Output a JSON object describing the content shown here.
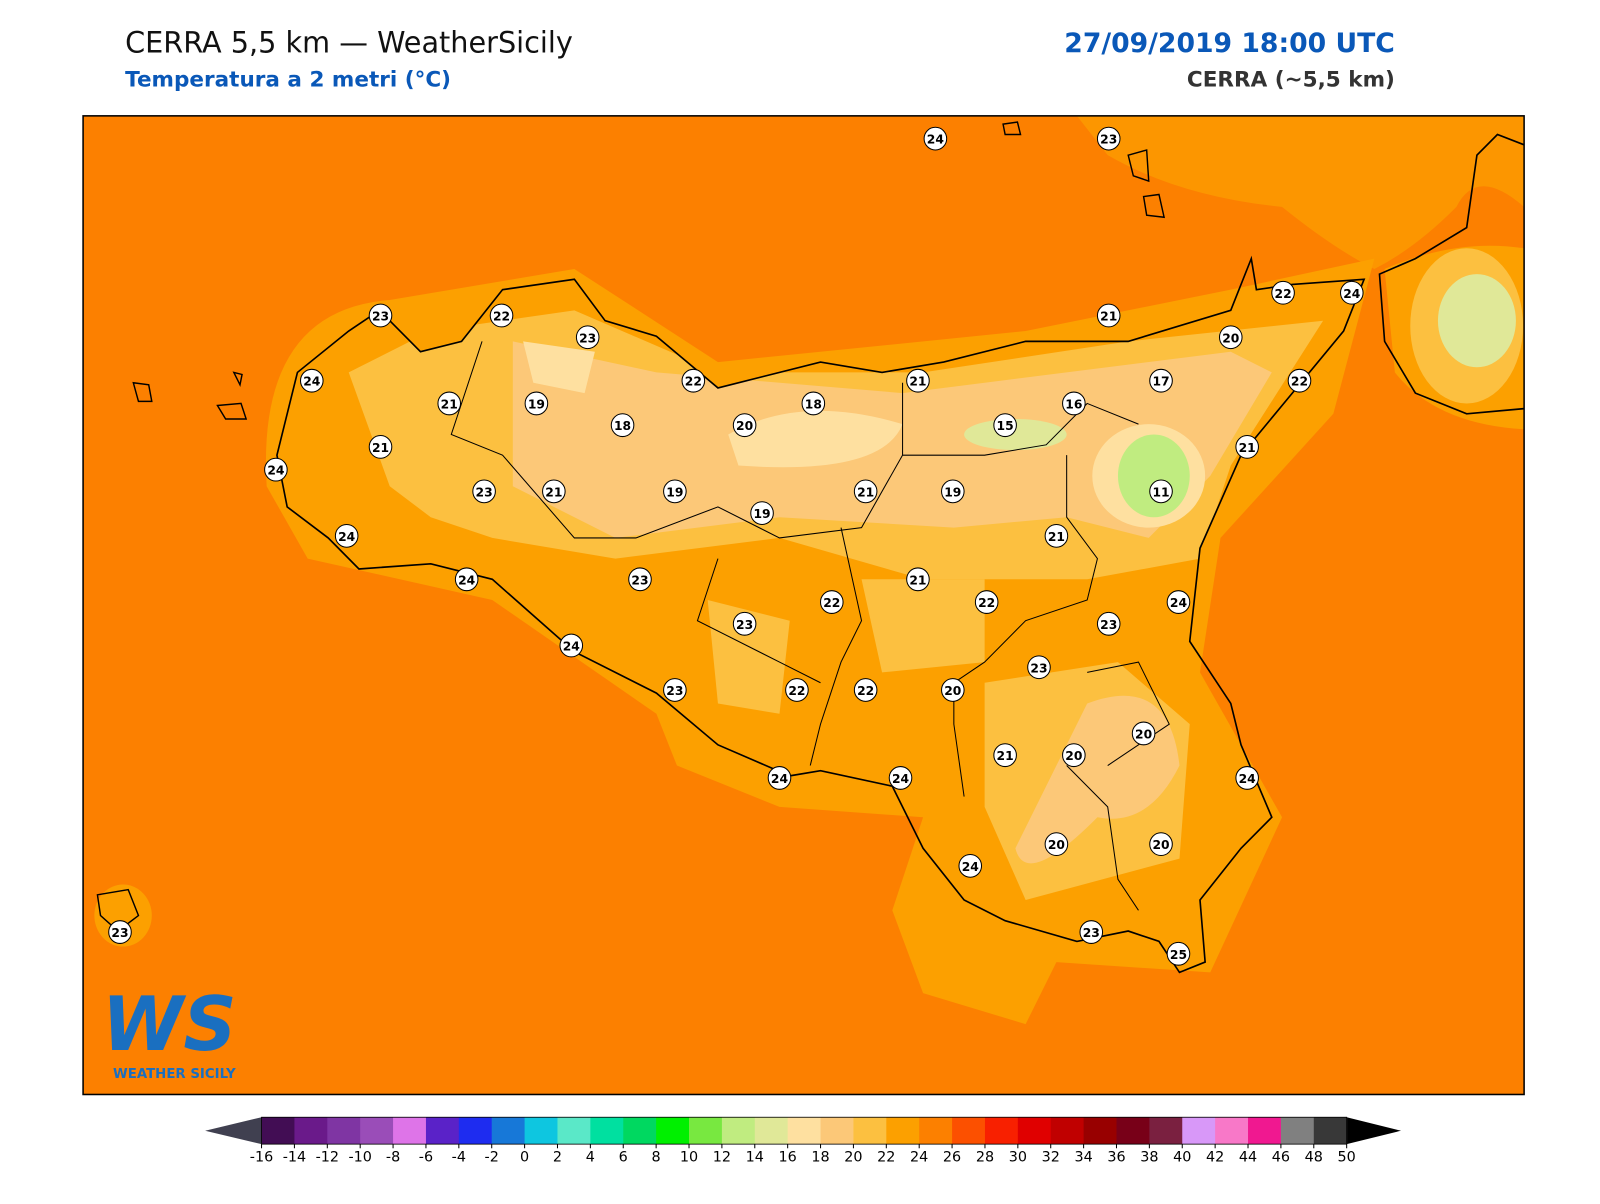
{
  "header": {
    "title": "CERRA 5,5 km — WeatherSicily",
    "subtitle": "Temperatura a 2 metri (°C)",
    "date": "27/09/2019 18:00 UTC",
    "model": "CERRA (~5,5 km)"
  },
  "stations": [
    24,
    23,
    23,
    22,
    23,
    24,
    22,
    21,
    19,
    18,
    18,
    20,
    21,
    21,
    22,
    24,
    20,
    17,
    22,
    16,
    15,
    21,
    21,
    24,
    23,
    21,
    19,
    19,
    21,
    19,
    11,
    24,
    21,
    24,
    23,
    21,
    22,
    22,
    24,
    23,
    23,
    24,
    23,
    23,
    22,
    22,
    20,
    20,
    21,
    20,
    24,
    24,
    24,
    20,
    20,
    24,
    23,
    25,
    23
  ],
  "colorbar": {
    "ticks": [
      -16,
      -14,
      -12,
      -10,
      -8,
      -6,
      -4,
      -2,
      0,
      2,
      4,
      6,
      8,
      10,
      12,
      14,
      16,
      18,
      20,
      22,
      24,
      26,
      28,
      30,
      32,
      34,
      36,
      38,
      40,
      42,
      44,
      46,
      48,
      50
    ],
    "colors": [
      "#420d54",
      "#6a1a8a",
      "#7f35a3",
      "#9a4db8",
      "#de74e8",
      "#5a22c8",
      "#1e2cf0",
      "#1778d8",
      "#0ec6e0",
      "#5ae8c8",
      "#00e0a0",
      "#00d860",
      "#00f000",
      "#78e840",
      "#c0ec80",
      "#e0e898",
      "#fee0a0",
      "#fcc878",
      "#fcc040",
      "#fca000",
      "#fc8000",
      "#fc5000",
      "#f82000",
      "#e00000",
      "#c00000",
      "#980000",
      "#780018",
      "#7a2040",
      "#d898f8",
      "#f878c8",
      "#f01890",
      "#808080",
      "#383838"
    ],
    "under": "#404050",
    "over": "#000000"
  },
  "logo": {
    "mark": "WS",
    "name": "WEATHER SICILY"
  }
}
